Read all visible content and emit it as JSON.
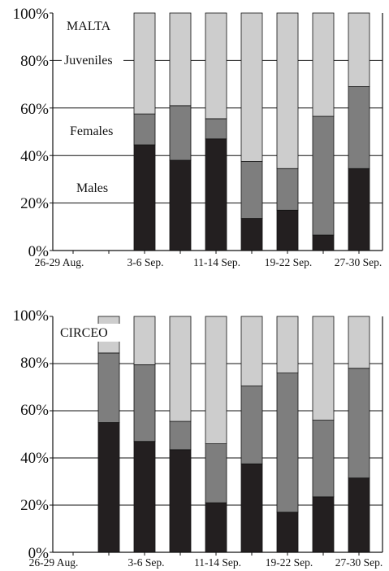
{
  "colors": {
    "males": "#231f20",
    "females": "#7e7e7e",
    "juveniles": "#cdcdcd",
    "axis": "#111111"
  },
  "chart_data": [
    {
      "type": "bar",
      "stacked": true,
      "title": "MALTA",
      "ylim": [
        0,
        100
      ],
      "y_ticks": [
        "0%",
        "20%",
        "40%",
        "60%",
        "80%",
        "100%"
      ],
      "x_tick_labels": [
        "26-29 Aug.",
        "3-6 Sep.",
        "11-14 Sep.",
        "19-22 Sep.",
        "27-30 Sep."
      ],
      "annotations": {
        "juveniles": "Juveniles",
        "females": "Females",
        "males": "Males"
      },
      "grid": "horizontal",
      "bars": [
        {
          "slot": 0,
          "males": null,
          "females": null
        },
        {
          "slot": 1,
          "males": null,
          "females": null
        },
        {
          "slot": 2,
          "males": 44.5,
          "females": 57.5
        },
        {
          "slot": 3,
          "males": 38,
          "females": 61
        },
        {
          "slot": 4,
          "males": 47,
          "females": 55.5
        },
        {
          "slot": 5,
          "males": 13.5,
          "females": 37.5
        },
        {
          "slot": 6,
          "males": 17,
          "females": 34.5
        },
        {
          "slot": 7,
          "males": 6.5,
          "females": 56.5
        },
        {
          "slot": 8,
          "males": 34.5,
          "females": 69
        }
      ]
    },
    {
      "type": "bar",
      "stacked": true,
      "title": "CIRCEO",
      "ylim": [
        0,
        100
      ],
      "y_ticks": [
        "0%",
        "20%",
        "40%",
        "60%",
        "80%",
        "100%"
      ],
      "x_tick_labels": [
        "26-29 Aug.",
        "3-6 Sep.",
        "11-14 Sep.",
        "19-22 Sep.",
        "27-30 Sep."
      ],
      "grid": "horizontal",
      "bars": [
        {
          "slot": 0,
          "males": null,
          "females": null
        },
        {
          "slot": 1,
          "males": 55,
          "females": 84.5
        },
        {
          "slot": 2,
          "males": 47,
          "females": 79.5
        },
        {
          "slot": 3,
          "males": 43.5,
          "females": 55.5
        },
        {
          "slot": 4,
          "males": 21,
          "females": 46
        },
        {
          "slot": 5,
          "males": 37.5,
          "females": 70.5
        },
        {
          "slot": 6,
          "males": 17,
          "females": 76
        },
        {
          "slot": 7,
          "males": 23.5,
          "females": 56
        },
        {
          "slot": 8,
          "males": 31.5,
          "females": 78
        }
      ]
    }
  ]
}
